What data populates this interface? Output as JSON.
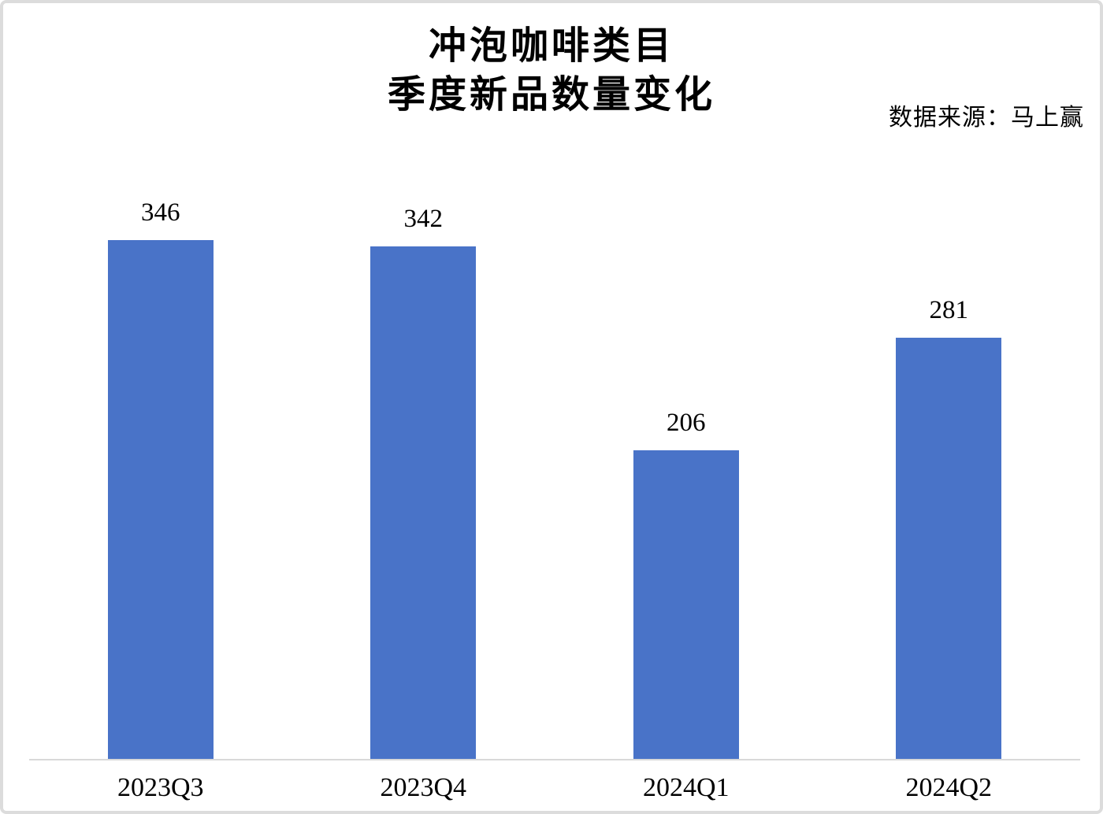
{
  "title": {
    "line1": "冲泡咖啡类目",
    "line2": "季度新品数量变化"
  },
  "source_note": "数据来源：马上赢",
  "chart_data": {
    "type": "bar",
    "title": "冲泡咖啡类目 季度新品数量变化",
    "categories": [
      "2023Q3",
      "2023Q4",
      "2024Q1",
      "2024Q2"
    ],
    "values": [
      346,
      342,
      206,
      281
    ],
    "xlabel": "",
    "ylabel": "",
    "ylim": [
      0,
      400
    ],
    "grid": false,
    "legend": "none",
    "data_labels": true,
    "bar_color": "#4973C8",
    "axis_color": "#D9D9D9",
    "text_color": "#000000"
  }
}
